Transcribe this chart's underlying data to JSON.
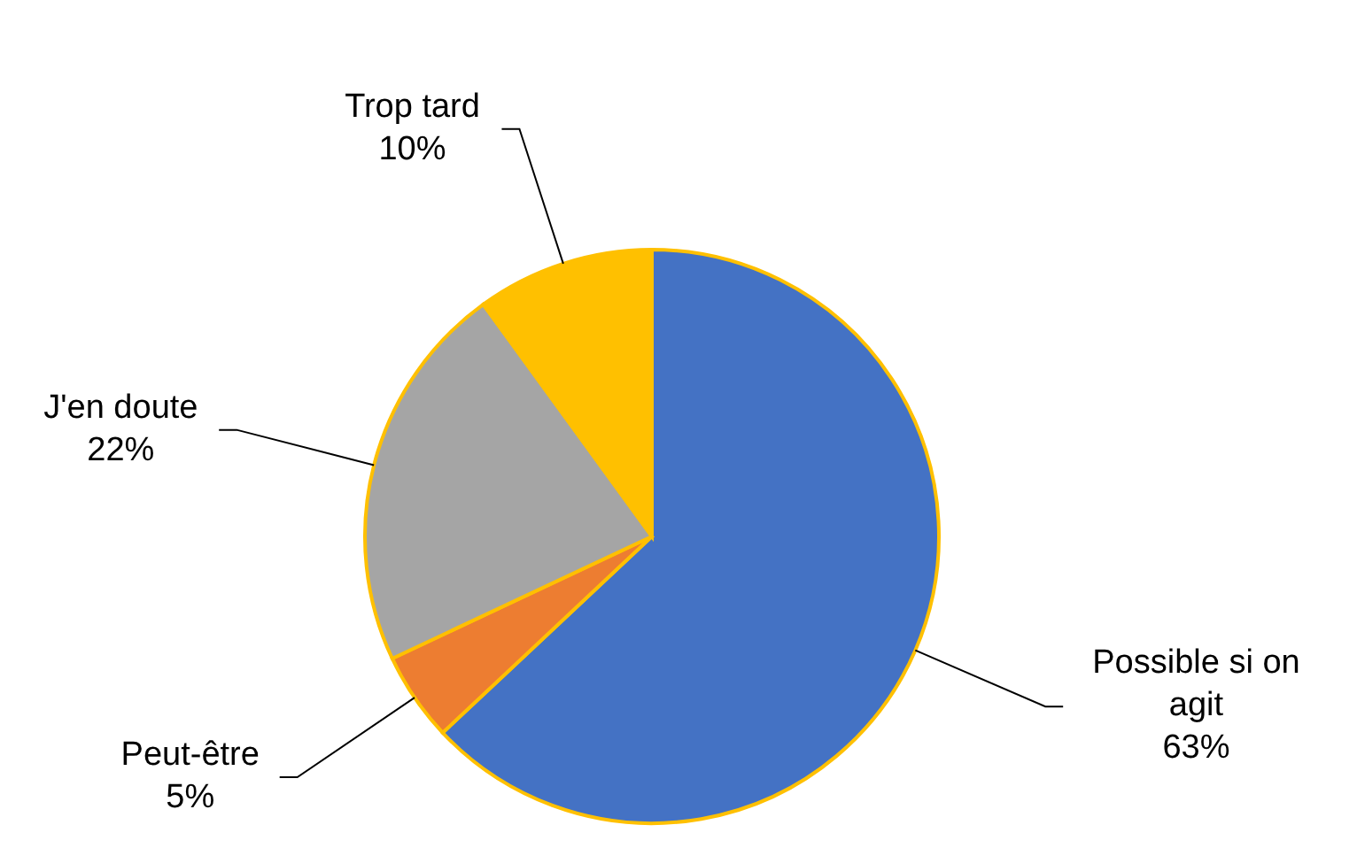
{
  "chart_data": {
    "type": "pie",
    "categories": [
      "Possible si on agit",
      "Peut-être",
      "J'en doute",
      "Trop tard"
    ],
    "values": [
      63,
      5,
      22,
      10
    ],
    "colors": [
      "#4472c4",
      "#ed7d31",
      "#a5a5a5",
      "#ffc000"
    ],
    "value_labels": [
      "63%",
      "5%",
      "22%",
      "10%"
    ]
  }
}
